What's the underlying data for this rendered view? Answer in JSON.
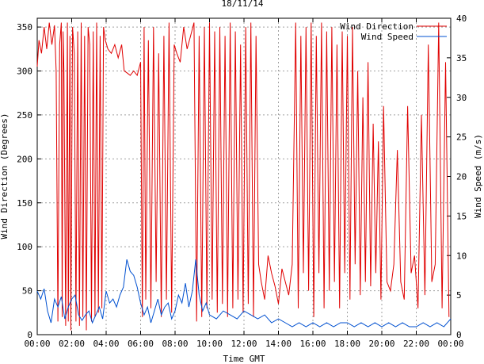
{
  "chart_data": {
    "type": "line",
    "title": "18/11/14",
    "xlabel": "Time GMT",
    "ylabel_left": "Wind Direction (Degrees)",
    "ylabel_right": "Wind Speed (m/s)",
    "x_ticks": [
      "00:00",
      "02:00",
      "04:00",
      "06:00",
      "08:00",
      "10:00",
      "12:00",
      "14:00",
      "16:00",
      "18:00",
      "20:00",
      "22:00",
      "00:00"
    ],
    "x_range_hours": [
      0,
      24
    ],
    "y_left_range": [
      0,
      360
    ],
    "y_left_ticks": [
      0,
      50,
      100,
      150,
      200,
      250,
      300,
      350
    ],
    "y_right_range": [
      0,
      40
    ],
    "y_right_ticks": [
      0,
      5,
      10,
      15,
      20,
      25,
      30,
      35,
      40
    ],
    "grid": true,
    "legend_position": "top-right",
    "colors": {
      "direction": "#e00000",
      "speed": "#0050d0"
    },
    "series": [
      {
        "name": "Wind Direction",
        "axis": "left",
        "color": "#e00000",
        "x": [
          0,
          0.1,
          0.25,
          0.4,
          0.55,
          0.7,
          0.85,
          1.0,
          1.1,
          1.2,
          1.3,
          1.4,
          1.45,
          1.5,
          1.55,
          1.65,
          1.75,
          1.8,
          1.9,
          1.95,
          2.05,
          2.15,
          2.25,
          2.35,
          2.45,
          2.55,
          2.65,
          2.75,
          2.85,
          2.95,
          3.05,
          3.15,
          3.25,
          3.35,
          3.45,
          3.55,
          3.65,
          3.75,
          3.85,
          3.95,
          4.1,
          4.3,
          4.5,
          4.7,
          4.9,
          5.05,
          5.2,
          5.4,
          5.6,
          5.8,
          6.0,
          6.1,
          6.2,
          6.3,
          6.45,
          6.6,
          6.75,
          6.9,
          7.05,
          7.2,
          7.35,
          7.5,
          7.65,
          7.8,
          7.95,
          8.1,
          8.3,
          8.5,
          8.7,
          8.9,
          9.1,
          9.25,
          9.4,
          9.55,
          9.7,
          9.85,
          10.0,
          10.15,
          10.3,
          10.45,
          10.6,
          10.75,
          10.9,
          11.05,
          11.2,
          11.35,
          11.5,
          11.65,
          11.8,
          11.95,
          12.1,
          12.25,
          12.4,
          12.55,
          12.7,
          12.85,
          13.0,
          13.2,
          13.4,
          13.6,
          13.8,
          14.0,
          14.2,
          14.4,
          14.6,
          14.8,
          15.0,
          15.15,
          15.3,
          15.45,
          15.6,
          15.75,
          15.9,
          16.05,
          16.2,
          16.35,
          16.5,
          16.65,
          16.8,
          16.95,
          17.1,
          17.25,
          17.4,
          17.55,
          17.7,
          17.85,
          18.0,
          18.15,
          18.3,
          18.45,
          18.6,
          18.75,
          18.9,
          19.05,
          19.2,
          19.35,
          19.5,
          19.65,
          19.8,
          19.95,
          20.1,
          20.3,
          20.5,
          20.7,
          20.9,
          21.1,
          21.3,
          21.5,
          21.7,
          21.9,
          22.1,
          22.3,
          22.5,
          22.7,
          22.9,
          23.1,
          23.3,
          23.5,
          23.7,
          23.9
        ],
        "values": [
          305,
          335,
          320,
          350,
          325,
          355,
          330,
          352,
          300,
          15,
          330,
          355,
          20,
          345,
          300,
          10,
          355,
          15,
          340,
          5,
          350,
          320,
          15,
          345,
          10,
          355,
          20,
          340,
          5,
          350,
          330,
          15,
          345,
          20,
          355,
          25,
          340,
          30,
          350,
          335,
          325,
          320,
          330,
          315,
          330,
          300,
          298,
          295,
          300,
          295,
          310,
          20,
          350,
          40,
          335,
          30,
          350,
          60,
          320,
          20,
          340,
          40,
          355,
          25,
          330,
          320,
          310,
          350,
          325,
          340,
          355,
          15,
          340,
          20,
          350,
          30,
          355,
          40,
          345,
          25,
          350,
          35,
          340,
          20,
          355,
          30,
          345,
          40,
          330,
          25,
          350,
          35,
          355,
          20,
          340,
          80,
          60,
          40,
          90,
          70,
          55,
          35,
          75,
          60,
          45,
          80,
          355,
          30,
          340,
          70,
          350,
          50,
          355,
          20,
          340,
          70,
          355,
          30,
          345,
          50,
          350,
          60,
          330,
          30,
          345,
          70,
          340,
          40,
          350,
          80,
          300,
          45,
          270,
          60,
          310,
          55,
          240,
          70,
          220,
          40,
          260,
          60,
          50,
          80,
          210,
          60,
          40,
          260,
          70,
          90,
          30,
          250,
          45,
          330,
          60,
          80,
          355,
          30,
          310,
          20
        ],
        "labels": [],
        "labels_note": ""
      },
      {
        "name": "Wind Speed",
        "axis": "right",
        "color": "#0050d0",
        "x": [
          0,
          0.2,
          0.4,
          0.6,
          0.8,
          1.0,
          1.2,
          1.4,
          1.6,
          1.8,
          2.0,
          2.2,
          2.4,
          2.6,
          2.8,
          3.0,
          3.2,
          3.4,
          3.6,
          3.8,
          4.0,
          4.2,
          4.4,
          4.6,
          4.8,
          5.0,
          5.2,
          5.4,
          5.6,
          5.8,
          6.0,
          6.2,
          6.4,
          6.6,
          6.8,
          7.0,
          7.2,
          7.4,
          7.6,
          7.8,
          8.0,
          8.2,
          8.4,
          8.6,
          8.8,
          9.0,
          9.2,
          9.4,
          9.6,
          9.8,
          10.0,
          10.4,
          10.8,
          11.2,
          11.6,
          12.0,
          12.4,
          12.8,
          13.2,
          13.6,
          14.0,
          14.4,
          14.8,
          15.2,
          15.6,
          16.0,
          16.4,
          16.8,
          17.2,
          17.6,
          18.0,
          18.4,
          18.8,
          19.2,
          19.6,
          20.0,
          20.4,
          20.8,
          21.2,
          21.6,
          22.0,
          22.4,
          22.8,
          23.2,
          23.6,
          24.0
        ],
        "values": [
          5.5,
          4.5,
          5.8,
          3.0,
          1.5,
          4.5,
          3.5,
          4.8,
          2.0,
          3.5,
          4.5,
          5.0,
          2.5,
          1.8,
          2.5,
          3.0,
          1.5,
          2.5,
          3.5,
          2.0,
          5.5,
          4.0,
          4.5,
          3.5,
          5.0,
          6.0,
          9.5,
          8.0,
          7.5,
          6.0,
          4.0,
          2.5,
          3.5,
          1.5,
          3.0,
          4.5,
          2.5,
          3.5,
          4.0,
          2.0,
          3.0,
          5.0,
          4.0,
          6.5,
          3.5,
          5.5,
          9.5,
          5.0,
          3.0,
          4.0,
          2.5,
          2.0,
          3.0,
          2.5,
          2.0,
          3.0,
          2.5,
          2.0,
          2.5,
          1.5,
          2.0,
          1.5,
          1.0,
          1.5,
          1.0,
          1.5,
          1.0,
          1.5,
          1.0,
          1.5,
          1.5,
          1.0,
          1.5,
          1.0,
          1.5,
          1.0,
          1.5,
          1.0,
          1.5,
          1.0,
          1.0,
          1.5,
          1.0,
          1.5,
          1.0,
          2.0
        ]
      }
    ]
  }
}
